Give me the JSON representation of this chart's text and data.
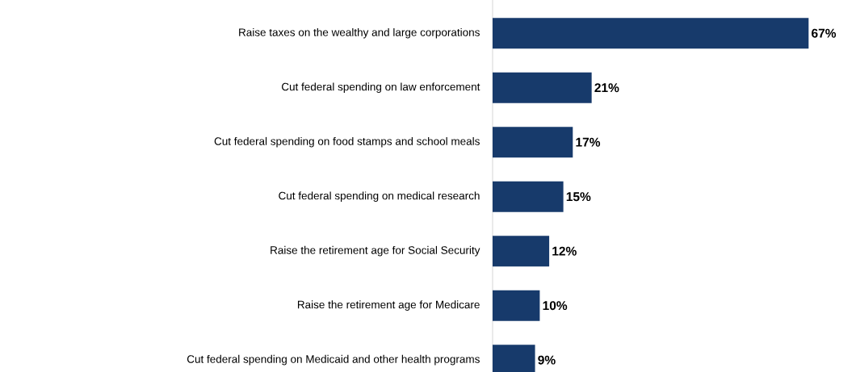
{
  "chart_data": {
    "type": "bar",
    "orientation": "horizontal",
    "categories": [
      "Raise taxes on the wealthy and large corporations",
      "Cut federal spending on law enforcement",
      "Cut federal spending on food stamps and school meals",
      "Cut federal spending on medical research",
      "Raise the retirement age for Social Security",
      "Raise the retirement age for Medicare",
      "Cut federal spending on Medicaid and other health programs"
    ],
    "values": [
      67,
      21,
      17,
      15,
      12,
      10,
      9
    ],
    "value_labels": [
      "67%",
      "21%",
      "17%",
      "15%",
      "12%",
      "10%",
      "9%"
    ],
    "color": "#173a6b"
  }
}
